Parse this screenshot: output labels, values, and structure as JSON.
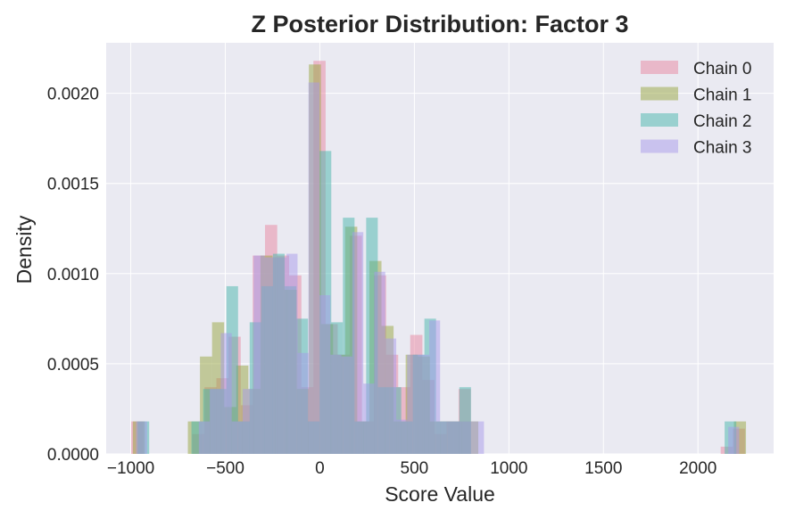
{
  "chart_data": {
    "type": "bar",
    "subtype": "overlaid-histogram",
    "title": "Z Posterior Distribution: Factor 3",
    "xlabel": "Score Value",
    "ylabel": "Density",
    "xlim": [
      -1130,
      2400
    ],
    "ylim": [
      0,
      0.00228
    ],
    "xticks": [
      -1000,
      -500,
      0,
      500,
      1000,
      1500,
      2000
    ],
    "xtick_labels": [
      "−1000",
      "−500",
      "0",
      "500",
      "1000",
      "1500",
      "2000"
    ],
    "yticks": [
      0,
      0.0005,
      0.001,
      0.0015,
      0.002
    ],
    "ytick_labels": [
      "0.0000",
      "0.0005",
      "0.0010",
      "0.0015",
      "0.0020"
    ],
    "grid": true,
    "legend_position": "top-right",
    "background": "#eaeaf2",
    "bar_opacity": 0.5,
    "series": [
      {
        "name": "Chain 0",
        "color": "#e7859f",
        "bin_width": 64.5,
        "bins": [
          [
            -998,
            0.00018
          ],
          [
            -675,
            0.00011
          ],
          [
            -610,
            0.00037
          ],
          [
            -547,
            0.00042
          ],
          [
            -483,
            0.00065
          ],
          [
            -418,
            0.00027
          ],
          [
            -355,
            0.0011
          ],
          [
            -290,
            0.00127
          ],
          [
            -227,
            0.0011
          ],
          [
            -162,
            0.00099
          ],
          [
            -98,
            0.00037
          ],
          [
            -34,
            0.00218
          ],
          [
            30,
            0.00072
          ],
          [
            94,
            0.00055
          ],
          [
            158,
            0.00121
          ],
          [
            222,
            0.00018
          ],
          [
            286,
            0.00099
          ],
          [
            350,
            0.00055
          ],
          [
            414,
            0.00037
          ],
          [
            478,
            0.00066
          ],
          [
            542,
            0.00041
          ],
          [
            606,
            0.00011
          ],
          [
            670,
            0.00018
          ],
          [
            734,
            0.00036
          ],
          [
            2120,
            4e-05
          ],
          [
            2184,
            0.00014
          ]
        ]
      },
      {
        "name": "Chain 1",
        "color": "#97a63f",
        "bin_width": 64,
        "bins": [
          [
            -989,
            0.00018
          ],
          [
            -698,
            0.00018
          ],
          [
            -634,
            0.00054
          ],
          [
            -570,
            0.00073
          ],
          [
            -506,
            0.00026
          ],
          [
            -442,
            0.00049
          ],
          [
            -378,
            0.00036
          ],
          [
            -314,
            0.0011
          ],
          [
            -250,
            0.00109
          ],
          [
            -186,
            0.00091
          ],
          [
            -122,
            0.00036
          ],
          [
            -58,
            0.00216
          ],
          [
            6,
            0.00072
          ],
          [
            70,
            0.00055
          ],
          [
            134,
            0.00126
          ],
          [
            198,
            0.00018
          ],
          [
            262,
            0.00107
          ],
          [
            326,
            0.00071
          ],
          [
            390,
            0.00018
          ],
          [
            454,
            0.00055
          ],
          [
            518,
            0.00054
          ],
          [
            582,
            0.00018
          ],
          [
            646,
            0.00018
          ],
          [
            710,
            0.00018
          ],
          [
            774,
            0.00018
          ],
          [
            2190,
            0.00018
          ]
        ]
      },
      {
        "name": "Chain 2",
        "color": "#47b5ab",
        "bin_width": 61.5,
        "bins": [
          [
            -964,
            0.00018
          ],
          [
            -679,
            0.00018
          ],
          [
            -617,
            0.00036
          ],
          [
            -556,
            0.00036
          ],
          [
            -494,
            0.00093
          ],
          [
            -432,
            0.00018
          ],
          [
            -371,
            0.00073
          ],
          [
            -309,
            0.00093
          ],
          [
            -248,
            0.00111
          ],
          [
            -186,
            0.00093
          ],
          [
            -124,
            0.00075
          ],
          [
            -63,
            0.00018
          ],
          [
            -1,
            0.00168
          ],
          [
            60,
            0.00073
          ],
          [
            122,
            0.00131
          ],
          [
            184,
            0.00018
          ],
          [
            245,
            0.00131
          ],
          [
            307,
            0.00037
          ],
          [
            369,
            0.00037
          ],
          [
            430,
            0.00018
          ],
          [
            492,
            0.00055
          ],
          [
            553,
            0.00075
          ],
          [
            615,
            0.00018
          ],
          [
            677,
            0.00018
          ],
          [
            738,
            0.00037
          ],
          [
            2141,
            0.00018
          ]
        ]
      },
      {
        "name": "Chain 3",
        "color": "#a799ea",
        "bin_width": 58,
        "bins": [
          [
            -972,
            0.00018
          ],
          [
            -640,
            0.00018
          ],
          [
            -582,
            0.00036
          ],
          [
            -524,
            0.00067
          ],
          [
            -466,
            0.00018
          ],
          [
            -408,
            0.00036
          ],
          [
            -350,
            0.0011
          ],
          [
            -292,
            0.00109
          ],
          [
            -234,
            0.00109
          ],
          [
            -176,
            0.00111
          ],
          [
            -118,
            0.00056
          ],
          [
            -60,
            0.00206
          ],
          [
            -2,
            0.00088
          ],
          [
            56,
            0.00055
          ],
          [
            114,
            0.00054
          ],
          [
            172,
            0.00123
          ],
          [
            230,
            0.00039
          ],
          [
            288,
            0.00101
          ],
          [
            346,
            0.00064
          ],
          [
            404,
            0.00019
          ],
          [
            462,
            0.00055
          ],
          [
            520,
            0.00055
          ],
          [
            578,
            0.00074
          ],
          [
            636,
            0.00018
          ],
          [
            694,
            0.00018
          ],
          [
            752,
            0.00018
          ],
          [
            810,
            0.00018
          ],
          [
            2160,
            0.00015
          ]
        ]
      }
    ]
  }
}
